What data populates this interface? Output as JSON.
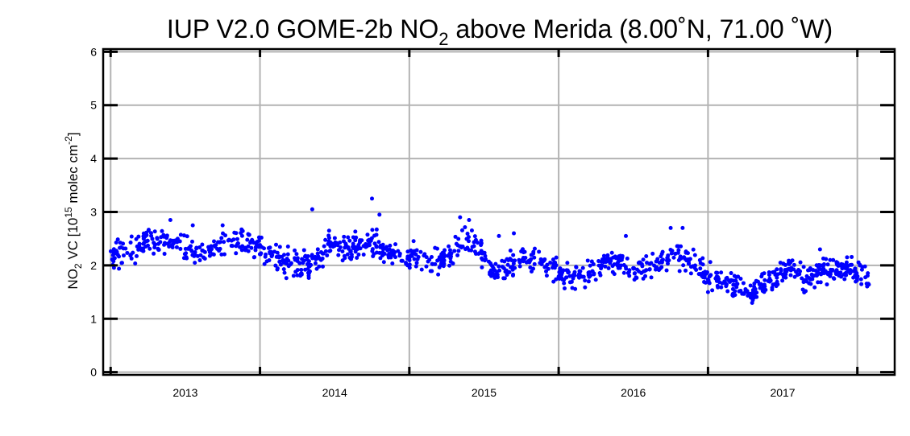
{
  "chart_data": {
    "type": "scatter",
    "title": {
      "prefix": "IUP V2.0 GOME-2b NO",
      "sub": "2",
      "suffix": " above Merida (8.00˚N, 71.00 ˚W)"
    },
    "ylabel": {
      "no": "NO",
      "no_sub": "2",
      "vc": " VC  [10",
      "exp": "15",
      "unit": " molec cm",
      "unit_exp": "-2",
      "close": "]"
    },
    "xlim": [
      2012.45,
      2017.75
    ],
    "ylim": [
      -0.05,
      6.05
    ],
    "x_ticks": [
      2013,
      2014,
      2015,
      2016,
      2017
    ],
    "x_tick_labels": [
      "2013",
      "2014",
      "2015",
      "2016",
      "2017"
    ],
    "y_ticks": [
      0,
      1,
      2,
      3,
      4,
      5,
      6
    ],
    "y_tick_labels": [
      "0",
      "1",
      "2",
      "3",
      "4",
      "5",
      "6"
    ],
    "grid": true,
    "marker_color": "#0000ff",
    "series": [
      {
        "x_start": 2012.5,
        "x_end": 2017.58,
        "count": 1200,
        "baseline": [
          [
            2012.5,
            2.2
          ],
          [
            2012.65,
            2.25
          ],
          [
            2012.75,
            2.5
          ],
          [
            2012.9,
            2.45
          ],
          [
            2013.0,
            2.3
          ],
          [
            2013.15,
            2.25
          ],
          [
            2013.25,
            2.35
          ],
          [
            2013.4,
            2.45
          ],
          [
            2013.55,
            2.2
          ],
          [
            2013.75,
            2.0
          ],
          [
            2013.85,
            2.05
          ],
          [
            2013.95,
            2.3
          ],
          [
            2014.1,
            2.35
          ],
          [
            2014.25,
            2.4
          ],
          [
            2014.4,
            2.2
          ],
          [
            2014.55,
            2.15
          ],
          [
            2014.65,
            2.0
          ],
          [
            2014.75,
            2.15
          ],
          [
            2014.9,
            2.5
          ],
          [
            2015.0,
            2.2
          ],
          [
            2015.05,
            1.85
          ],
          [
            2015.15,
            1.95
          ],
          [
            2015.3,
            2.15
          ],
          [
            2015.45,
            1.95
          ],
          [
            2015.55,
            1.8
          ],
          [
            2015.7,
            1.85
          ],
          [
            2015.85,
            2.1
          ],
          [
            2016.0,
            1.9
          ],
          [
            2016.15,
            2.0
          ],
          [
            2016.25,
            2.25
          ],
          [
            2016.4,
            2.1
          ],
          [
            2016.5,
            1.8
          ],
          [
            2016.65,
            1.65
          ],
          [
            2016.8,
            1.55
          ],
          [
            2016.95,
            1.8
          ],
          [
            2017.05,
            2.0
          ],
          [
            2017.15,
            1.75
          ],
          [
            2017.3,
            1.95
          ],
          [
            2017.45,
            1.9
          ],
          [
            2017.58,
            1.75
          ]
        ],
        "spread": 0.17,
        "outliers": [
          [
            2013.85,
            3.05
          ],
          [
            2014.25,
            3.25
          ],
          [
            2014.3,
            2.95
          ],
          [
            2014.84,
            2.9
          ],
          [
            2014.9,
            2.85
          ],
          [
            2016.25,
            2.7
          ],
          [
            2016.33,
            2.7
          ],
          [
            2015.1,
            2.55
          ],
          [
            2015.2,
            2.6
          ],
          [
            2015.95,
            2.55
          ],
          [
            2016.8,
            1.35
          ],
          [
            2016.5,
            1.5
          ],
          [
            2017.25,
            2.3
          ],
          [
            2013.25,
            2.75
          ],
          [
            2013.05,
            2.75
          ],
          [
            2012.9,
            2.85
          ]
        ]
      }
    ]
  }
}
